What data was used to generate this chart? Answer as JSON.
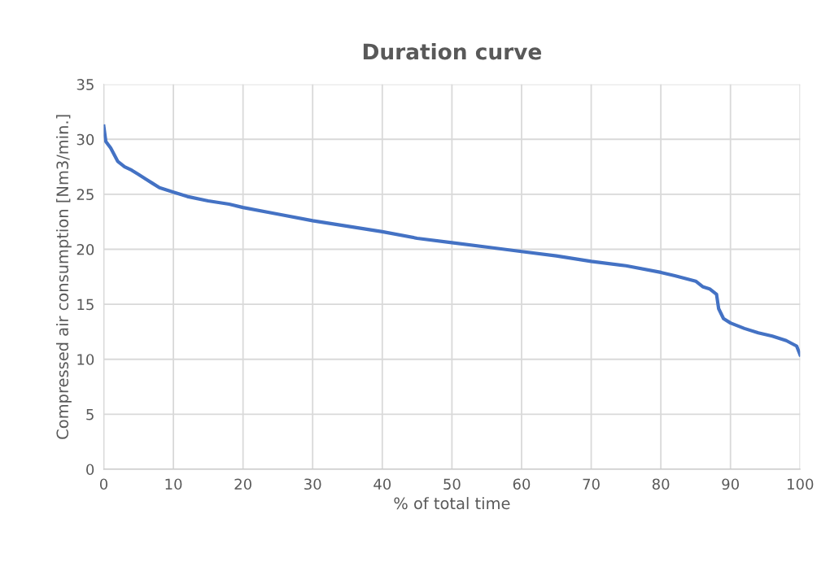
{
  "chart_data": {
    "type": "line",
    "title": "Duration curve",
    "xlabel": "% of total time",
    "ylabel": "Compressed air consumption [Nm3/min.]",
    "x": [
      0,
      0.3,
      1,
      2,
      3,
      4,
      5,
      6,
      7,
      8,
      10,
      12,
      15,
      18,
      20,
      25,
      30,
      35,
      40,
      45,
      50,
      55,
      60,
      65,
      70,
      75,
      80,
      82,
      85,
      86,
      87,
      88,
      88.3,
      89,
      90,
      92,
      94,
      96,
      98,
      99.5,
      100
    ],
    "series": [
      {
        "color": "#4472c4",
        "values": [
          31.2,
          29.8,
          29.2,
          28,
          27.5,
          27.2,
          26.8,
          26.4,
          26.0,
          25.6,
          25.2,
          24.8,
          24.4,
          24.1,
          23.8,
          23.2,
          22.6,
          22.1,
          21.6,
          21.0,
          20.6,
          20.2,
          19.8,
          19.4,
          18.9,
          18.5,
          17.9,
          17.6,
          17.1,
          16.6,
          16.4,
          15.9,
          14.6,
          13.7,
          13.3,
          12.8,
          12.4,
          12.1,
          11.7,
          11.2,
          10.4
        ]
      }
    ],
    "xlim": [
      0,
      100
    ],
    "xticks": [
      0,
      10,
      20,
      30,
      40,
      50,
      60,
      70,
      80,
      90,
      100
    ],
    "ylim": [
      0,
      35
    ],
    "yticks": [
      0,
      5,
      10,
      15,
      20,
      25,
      30,
      35
    ],
    "grid": true,
    "marker": "none",
    "line_style": "solid"
  }
}
